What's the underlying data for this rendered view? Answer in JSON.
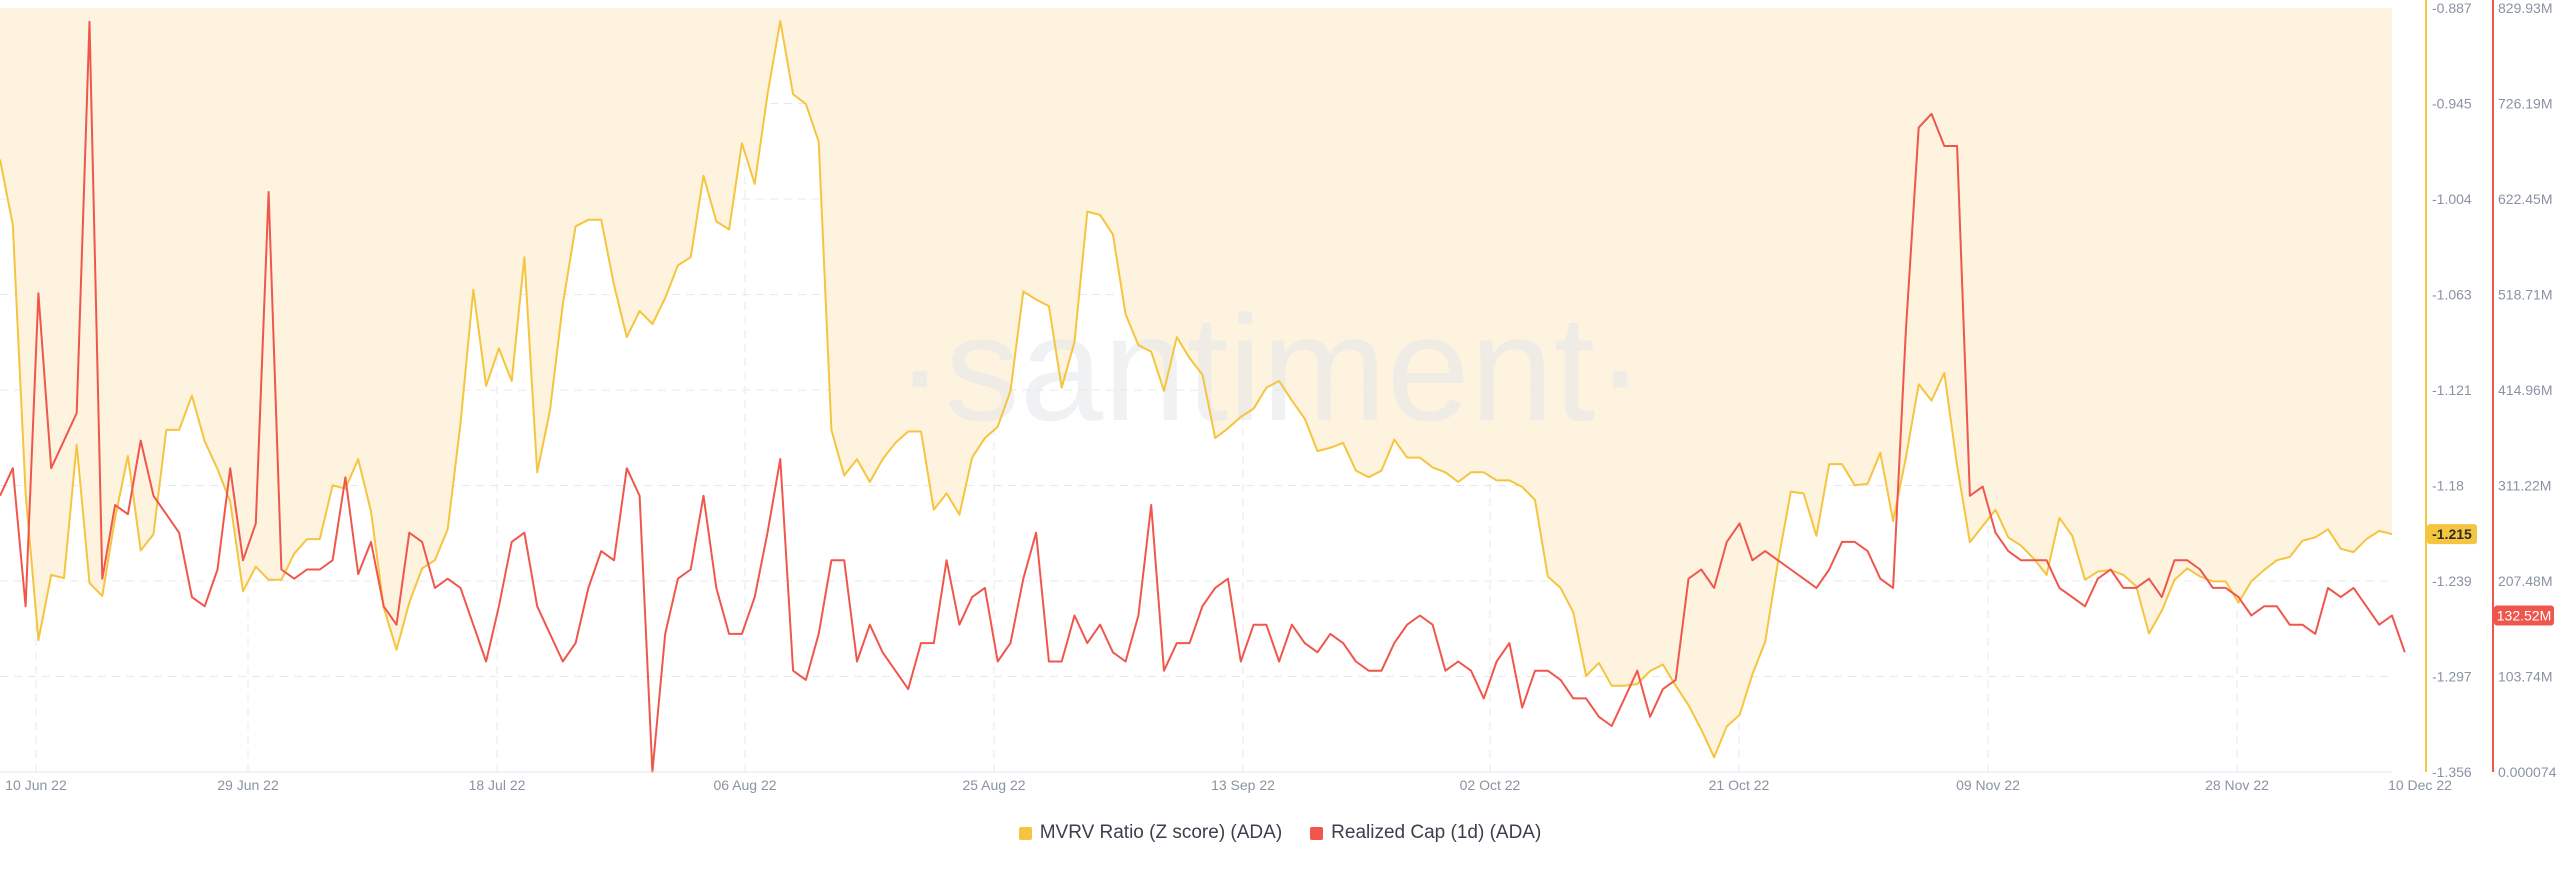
{
  "watermark": "·santiment·",
  "chart_data": {
    "type": "line",
    "x_tick_labels": [
      "10 Jun 22",
      "29 Jun 22",
      "18 Jul 22",
      "06 Aug 22",
      "25 Aug 22",
      "13 Sep 22",
      "02 Oct 22",
      "21 Oct 22",
      "09 Nov 22",
      "28 Nov 22",
      "10 Dec 22"
    ],
    "x_range": [
      "2022-06-10",
      "2022-12-10"
    ],
    "y_left": {
      "series": "MVRV Ratio (Z score) (ADA)",
      "tick_labels": [
        "-0.887",
        "-0.945",
        "-1.004",
        "-1.063",
        "-1.121",
        "-1.18",
        "-1.239",
        "-1.297",
        "-1.356"
      ],
      "range": [
        -1.356,
        -0.887
      ],
      "current_value_label": "-1.215",
      "color": "#f5c53f"
    },
    "y_right": {
      "series": "Realized Cap (1d) (ADA)",
      "tick_labels": [
        "829.93M",
        "726.19M",
        "622.45M",
        "518.71M",
        "414.96M",
        "311.22M",
        "207.48M",
        "103.74M",
        "0.000074"
      ],
      "range": [
        0,
        829930000
      ],
      "current_value_label": "132.52M",
      "color": "#f0574c"
    },
    "series": [
      {
        "name": "MVRV Ratio (Z score) (ADA)",
        "axis": "left",
        "color": "#f5c53f",
        "values": [
          -0.98,
          -1.02,
          -1.185,
          -1.275,
          -1.235,
          -1.237,
          -1.155,
          -1.24,
          -1.248,
          -1.2,
          -1.162,
          -1.22,
          -1.21,
          -1.146,
          -1.146,
          -1.125,
          -1.153,
          -1.17,
          -1.19,
          -1.245,
          -1.23,
          -1.238,
          -1.238,
          -1.222,
          -1.213,
          -1.213,
          -1.18,
          -1.182,
          -1.164,
          -1.196,
          -1.255,
          -1.281,
          -1.252,
          -1.231,
          -1.226,
          -1.207,
          -1.142,
          -1.06,
          -1.119,
          -1.096,
          -1.116,
          -1.04,
          -1.172,
          -1.134,
          -1.069,
          -1.021,
          -1.017,
          -1.017,
          -1.057,
          -1.089,
          -1.073,
          -1.081,
          -1.065,
          -1.045,
          -1.04,
          -0.99,
          -1.018,
          -1.023,
          -0.97,
          -0.995,
          -0.94,
          -0.895,
          -0.94,
          -0.946,
          -0.969,
          -1.146,
          -1.174,
          -1.164,
          -1.178,
          -1.164,
          -1.154,
          -1.147,
          -1.147,
          -1.195,
          -1.185,
          -1.198,
          -1.163,
          -1.151,
          -1.144,
          -1.122,
          -1.061,
          -1.066,
          -1.07,
          -1.12,
          -1.092,
          -1.012,
          -1.014,
          -1.026,
          -1.075,
          -1.094,
          -1.098,
          -1.122,
          -1.089,
          -1.102,
          -1.112,
          -1.151,
          -1.145,
          -1.138,
          -1.133,
          -1.12,
          -1.116,
          -1.128,
          -1.139,
          -1.159,
          -1.157,
          -1.154,
          -1.171,
          -1.175,
          -1.171,
          -1.152,
          -1.163,
          -1.163,
          -1.169,
          -1.172,
          -1.178,
          -1.172,
          -1.172,
          -1.177,
          -1.177,
          -1.181,
          -1.189,
          -1.236,
          -1.243,
          -1.258,
          -1.297,
          -1.289,
          -1.303,
          -1.303,
          -1.302,
          -1.294,
          -1.29,
          -1.303,
          -1.315,
          -1.33,
          -1.347,
          -1.328,
          -1.321,
          -1.296,
          -1.276,
          -1.227,
          -1.184,
          -1.185,
          -1.211,
          -1.167,
          -1.167,
          -1.18,
          -1.179,
          -1.16,
          -1.202,
          -1.163,
          -1.118,
          -1.128,
          -1.111,
          -1.168,
          -1.215,
          -1.205,
          -1.195,
          -1.212,
          -1.217,
          -1.225,
          -1.235,
          -1.2,
          -1.211,
          -1.238,
          -1.233,
          -1.232,
          -1.235,
          -1.242,
          -1.271,
          -1.257,
          -1.238,
          -1.231,
          -1.236,
          -1.239,
          -1.239,
          -1.252,
          -1.239,
          -1.232,
          -1.226,
          -1.224,
          -1.214,
          -1.212,
          -1.207,
          -1.219,
          -1.221,
          -1.213,
          -1.208,
          -1.21
        ]
      },
      {
        "name": "Realized Cap (1d) (ADA)",
        "axis": "right",
        "color": "#f0574c",
        "values": [
          300000000,
          330000000,
          180000000,
          520000000,
          330000000,
          360000000,
          390000000,
          815000000,
          210000000,
          290000000,
          280000000,
          360000000,
          300000000,
          280000000,
          260000000,
          190000000,
          180000000,
          220000000,
          330000000,
          230000000,
          270000000,
          630000000,
          220000000,
          210000000,
          220000000,
          220000000,
          230000000,
          320000000,
          215000000,
          250000000,
          180000000,
          160000000,
          260000000,
          250000000,
          200000000,
          210000000,
          200000000,
          160000000,
          120000000,
          180000000,
          250000000,
          260000000,
          180000000,
          150000000,
          120000000,
          140000000,
          200000000,
          240000000,
          230000000,
          330000000,
          300000000,
          -20000000,
          150000000,
          210000000,
          220000000,
          300000000,
          200000000,
          150000000,
          150000000,
          190000000,
          260000000,
          340000000,
          110000000,
          100000000,
          150000000,
          230000000,
          230000000,
          120000000,
          160000000,
          130000000,
          110000000,
          90000000,
          140000000,
          140000000,
          230000000,
          160000000,
          190000000,
          200000000,
          120000000,
          140000000,
          210000000,
          260000000,
          120000000,
          120000000,
          170000000,
          140000000,
          160000000,
          130000000,
          120000000,
          170000000,
          290000000,
          110000000,
          140000000,
          140000000,
          180000000,
          200000000,
          210000000,
          120000000,
          160000000,
          160000000,
          120000000,
          160000000,
          140000000,
          130000000,
          150000000,
          140000000,
          120000000,
          110000000,
          110000000,
          140000000,
          160000000,
          170000000,
          160000000,
          110000000,
          120000000,
          110000000,
          80000000,
          120000000,
          140000000,
          70000000,
          110000000,
          110000000,
          100000000,
          80000000,
          80000000,
          60000000,
          50000000,
          80000000,
          110000000,
          60000000,
          90000000,
          100000000,
          210000000,
          220000000,
          200000000,
          250000000,
          270000000,
          230000000,
          240000000,
          230000000,
          220000000,
          210000000,
          200000000,
          220000000,
          250000000,
          250000000,
          240000000,
          210000000,
          200000000,
          480000000,
          700000000,
          715000000,
          680000000,
          680000000,
          300000000,
          310000000,
          260000000,
          240000000,
          230000000,
          230000000,
          230000000,
          200000000,
          190000000,
          180000000,
          210000000,
          220000000,
          200000000,
          200000000,
          210000000,
          190000000,
          230000000,
          230000000,
          220000000,
          200000000,
          200000000,
          190000000,
          170000000,
          180000000,
          180000000,
          160000000,
          160000000,
          150000000,
          200000000,
          190000000,
          200000000,
          180000000,
          160000000,
          170000000,
          130000000
        ]
      }
    ]
  }
}
